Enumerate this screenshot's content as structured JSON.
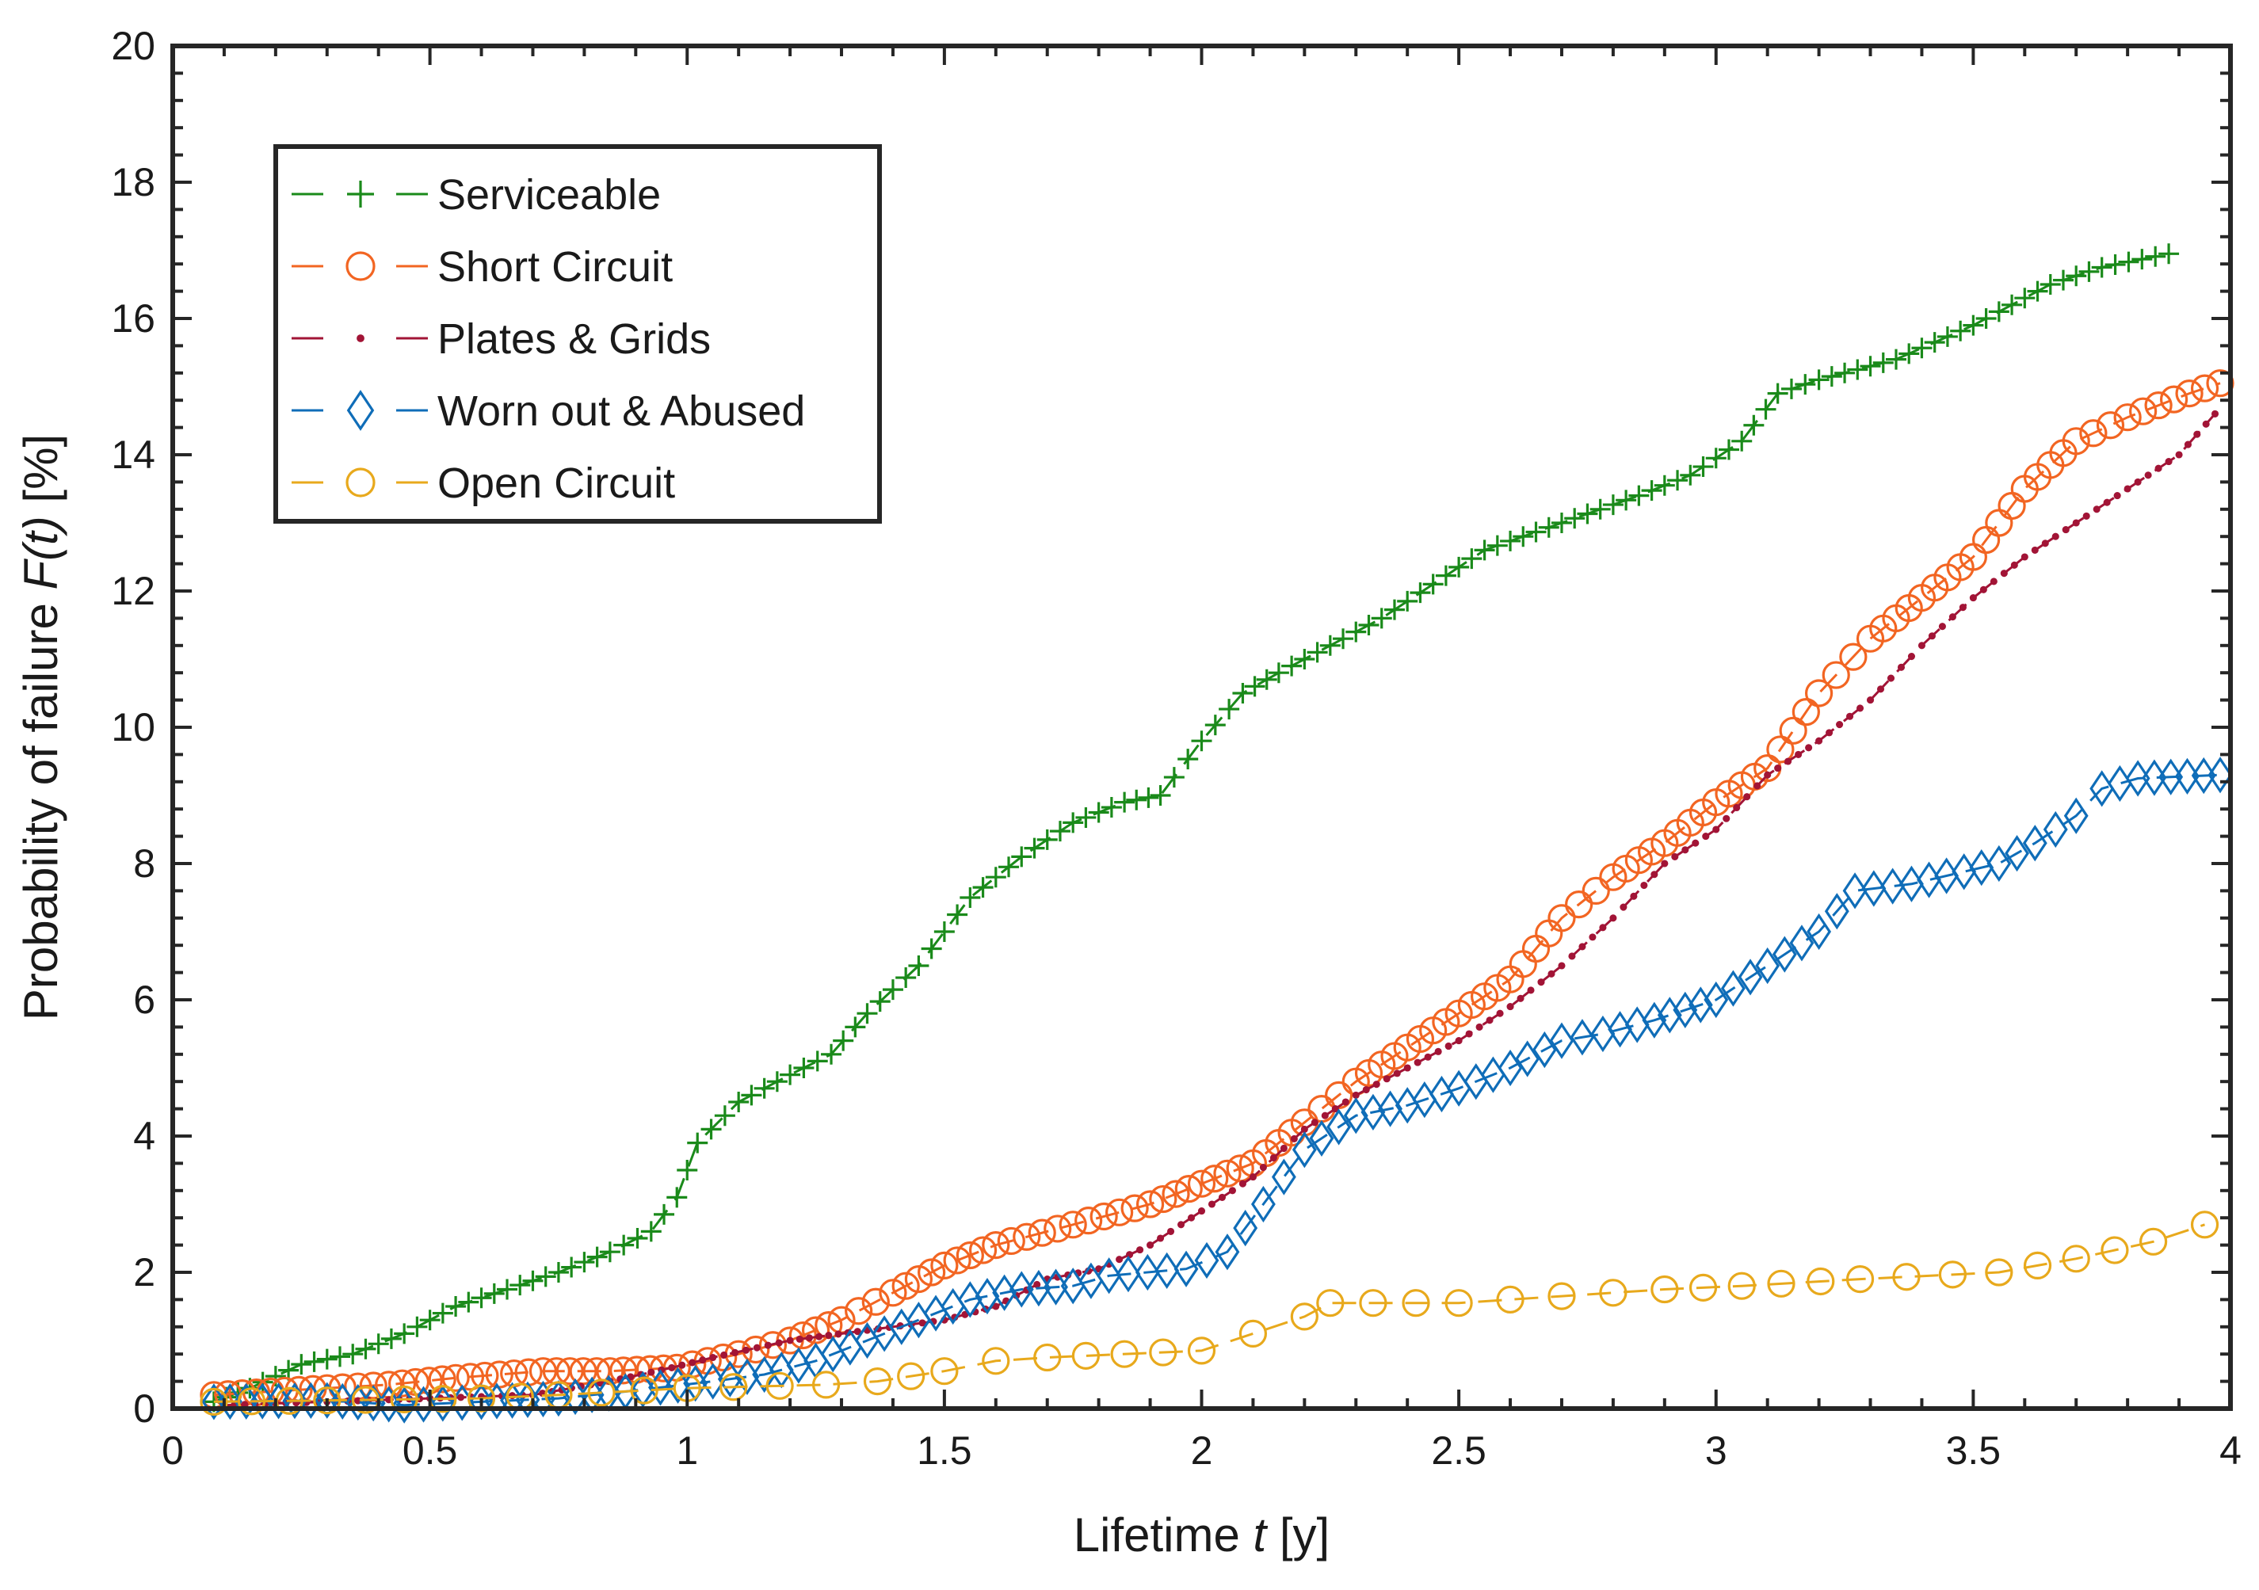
{
  "chart_data": {
    "type": "line",
    "title": "",
    "xlabel": {
      "prefix": "Lifetime ",
      "var": "t",
      "suffix": " [y]"
    },
    "ylabel": {
      "prefix": "Probability of failure ",
      "var": "F(t)",
      "suffix": " [%]"
    },
    "xlim": [
      0,
      4
    ],
    "ylim": [
      0,
      20
    ],
    "xticks": [
      0,
      0.5,
      1,
      1.5,
      2,
      2.5,
      3,
      3.5,
      4
    ],
    "xtick_labels": [
      "0",
      "0.5",
      "1",
      "1.5",
      "2",
      "2.5",
      "3",
      "3.5",
      "4"
    ],
    "yticks": [
      0,
      2,
      4,
      6,
      8,
      10,
      12,
      14,
      16,
      18,
      20
    ],
    "ytick_labels": [
      "0",
      "2",
      "4",
      "6",
      "8",
      "10",
      "12",
      "14",
      "16",
      "18",
      "20"
    ],
    "grid": false,
    "legend_position": "top-left",
    "series": [
      {
        "name": "Serviceable",
        "color": "#1a8a1a",
        "marker": "plus",
        "density": 4,
        "points": [
          [
            0.08,
            0.1
          ],
          [
            0.15,
            0.3
          ],
          [
            0.25,
            0.65
          ],
          [
            0.35,
            0.8
          ],
          [
            0.45,
            1.1
          ],
          [
            0.55,
            1.5
          ],
          [
            0.65,
            1.75
          ],
          [
            0.75,
            2.0
          ],
          [
            0.85,
            2.3
          ],
          [
            0.93,
            2.6
          ],
          [
            0.98,
            3.1
          ],
          [
            1.02,
            3.9
          ],
          [
            1.1,
            4.5
          ],
          [
            1.2,
            4.9
          ],
          [
            1.28,
            5.2
          ],
          [
            1.35,
            5.8
          ],
          [
            1.45,
            6.5
          ],
          [
            1.55,
            7.5
          ],
          [
            1.65,
            8.1
          ],
          [
            1.75,
            8.6
          ],
          [
            1.85,
            8.9
          ],
          [
            1.92,
            9.0
          ],
          [
            2.0,
            9.8
          ],
          [
            2.08,
            10.5
          ],
          [
            2.15,
            10.8
          ],
          [
            2.25,
            11.2
          ],
          [
            2.35,
            11.6
          ],
          [
            2.45,
            12.1
          ],
          [
            2.55,
            12.6
          ],
          [
            2.7,
            13.0
          ],
          [
            2.85,
            13.4
          ],
          [
            2.95,
            13.7
          ],
          [
            3.05,
            14.2
          ],
          [
            3.12,
            14.9
          ],
          [
            3.2,
            15.1
          ],
          [
            3.35,
            15.4
          ],
          [
            3.5,
            15.9
          ],
          [
            3.65,
            16.5
          ],
          [
            3.75,
            16.75
          ],
          [
            3.88,
            16.95
          ]
        ]
      },
      {
        "name": "Short Circuit",
        "color": "#f26522",
        "marker": "circle",
        "density": 3.5,
        "points": [
          [
            0.08,
            0.2
          ],
          [
            0.3,
            0.3
          ],
          [
            0.42,
            0.35
          ],
          [
            0.55,
            0.45
          ],
          [
            0.72,
            0.55
          ],
          [
            0.85,
            0.55
          ],
          [
            0.98,
            0.6
          ],
          [
            1.1,
            0.8
          ],
          [
            1.2,
            1.0
          ],
          [
            1.3,
            1.3
          ],
          [
            1.4,
            1.7
          ],
          [
            1.5,
            2.1
          ],
          [
            1.6,
            2.4
          ],
          [
            1.75,
            2.7
          ],
          [
            1.9,
            3.0
          ],
          [
            2.0,
            3.3
          ],
          [
            2.1,
            3.6
          ],
          [
            2.2,
            4.2
          ],
          [
            2.3,
            4.8
          ],
          [
            2.4,
            5.3
          ],
          [
            2.5,
            5.8
          ],
          [
            2.6,
            6.3
          ],
          [
            2.7,
            7.2
          ],
          [
            2.8,
            7.8
          ],
          [
            2.9,
            8.3
          ],
          [
            3.0,
            8.9
          ],
          [
            3.1,
            9.4
          ],
          [
            3.2,
            10.5
          ],
          [
            3.3,
            11.3
          ],
          [
            3.4,
            11.9
          ],
          [
            3.5,
            12.5
          ],
          [
            3.6,
            13.5
          ],
          [
            3.7,
            14.2
          ],
          [
            3.8,
            14.55
          ],
          [
            3.92,
            14.9
          ],
          [
            3.98,
            15.05
          ]
        ]
      },
      {
        "name": "Plates & Grids",
        "color": "#a21436",
        "marker": "dot",
        "density": 5,
        "points": [
          [
            0.1,
            0.05
          ],
          [
            0.3,
            0.1
          ],
          [
            0.5,
            0.15
          ],
          [
            0.7,
            0.2
          ],
          [
            0.85,
            0.4
          ],
          [
            0.97,
            0.6
          ],
          [
            1.05,
            0.75
          ],
          [
            1.2,
            1.0
          ],
          [
            1.35,
            1.15
          ],
          [
            1.5,
            1.3
          ],
          [
            1.6,
            1.5
          ],
          [
            1.7,
            1.9
          ],
          [
            1.8,
            2.05
          ],
          [
            1.9,
            2.4
          ],
          [
            2.0,
            2.9
          ],
          [
            2.1,
            3.4
          ],
          [
            2.2,
            4.1
          ],
          [
            2.3,
            4.6
          ],
          [
            2.4,
            5.0
          ],
          [
            2.5,
            5.4
          ],
          [
            2.6,
            5.9
          ],
          [
            2.7,
            6.5
          ],
          [
            2.8,
            7.2
          ],
          [
            2.9,
            8.0
          ],
          [
            3.0,
            8.5
          ],
          [
            3.1,
            9.3
          ],
          [
            3.2,
            9.8
          ],
          [
            3.3,
            10.4
          ],
          [
            3.4,
            11.2
          ],
          [
            3.5,
            11.9
          ],
          [
            3.6,
            12.5
          ],
          [
            3.7,
            13.0
          ],
          [
            3.8,
            13.5
          ],
          [
            3.9,
            14.0
          ],
          [
            3.97,
            14.6
          ]
        ]
      },
      {
        "name": "Worn out & Abused",
        "color": "#0f6db8",
        "marker": "diamond",
        "density": 3,
        "points": [
          [
            0.08,
            0.1
          ],
          [
            0.3,
            0.12
          ],
          [
            0.45,
            0.05
          ],
          [
            0.6,
            0.1
          ],
          [
            0.75,
            0.15
          ],
          [
            0.88,
            0.25
          ],
          [
            1.05,
            0.4
          ],
          [
            1.15,
            0.5
          ],
          [
            1.25,
            0.7
          ],
          [
            1.35,
            1.0
          ],
          [
            1.45,
            1.3
          ],
          [
            1.55,
            1.6
          ],
          [
            1.65,
            1.75
          ],
          [
            1.75,
            1.8
          ],
          [
            1.82,
            1.95
          ],
          [
            1.97,
            2.05
          ],
          [
            2.05,
            2.3
          ],
          [
            2.12,
            3.0
          ],
          [
            2.2,
            3.8
          ],
          [
            2.3,
            4.3
          ],
          [
            2.4,
            4.45
          ],
          [
            2.5,
            4.7
          ],
          [
            2.6,
            5.0
          ],
          [
            2.7,
            5.4
          ],
          [
            2.78,
            5.5
          ],
          [
            2.88,
            5.7
          ],
          [
            3.0,
            6.0
          ],
          [
            3.1,
            6.5
          ],
          [
            3.2,
            7.0
          ],
          [
            3.27,
            7.6
          ],
          [
            3.38,
            7.7
          ],
          [
            3.55,
            8.0
          ],
          [
            3.62,
            8.3
          ],
          [
            3.7,
            8.7
          ],
          [
            3.75,
            9.1
          ],
          [
            3.82,
            9.25
          ],
          [
            3.98,
            9.3
          ]
        ]
      },
      {
        "name": "Open Circuit",
        "color": "#e8a91c",
        "marker": "circle",
        "density": 1.2,
        "points": [
          [
            0.08,
            0.1
          ],
          [
            0.3,
            0.12
          ],
          [
            0.6,
            0.15
          ],
          [
            0.75,
            0.2
          ],
          [
            1.0,
            0.3
          ],
          [
            1.27,
            0.35
          ],
          [
            1.37,
            0.4
          ],
          [
            1.5,
            0.55
          ],
          [
            1.6,
            0.7
          ],
          [
            1.7,
            0.75
          ],
          [
            2.0,
            0.85
          ],
          [
            2.1,
            1.1
          ],
          [
            2.2,
            1.35
          ],
          [
            2.25,
            1.55
          ],
          [
            2.5,
            1.55
          ],
          [
            2.7,
            1.65
          ],
          [
            2.9,
            1.75
          ],
          [
            3.05,
            1.8
          ],
          [
            3.28,
            1.9
          ],
          [
            3.55,
            2.0
          ],
          [
            3.7,
            2.2
          ],
          [
            3.85,
            2.45
          ],
          [
            3.95,
            2.7
          ]
        ]
      }
    ]
  }
}
